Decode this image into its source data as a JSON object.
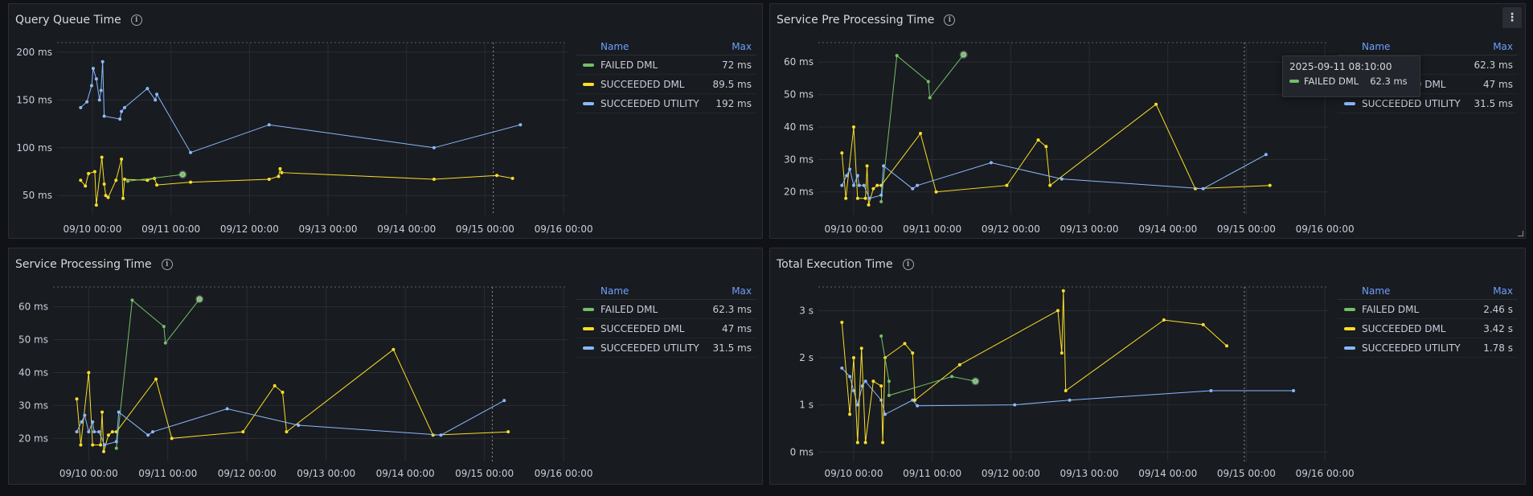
{
  "colors": {
    "FAILED DML": "#73bf69",
    "SUCCEEDED DML": "#fade2a",
    "SUCCEEDED UTILITY": "#8ab8ff"
  },
  "legend_headers": {
    "name": "Name",
    "max": "Max"
  },
  "x_tick_labels": [
    "09/10 00:00",
    "09/11 00:00",
    "09/12 00:00",
    "09/13 00:00",
    "09/14 00:00",
    "09/15 00:00",
    "09/16 00:00"
  ],
  "panels": [
    {
      "title": "Query Queue Time",
      "legend": [
        {
          "name": "FAILED DML",
          "max": "72 ms"
        },
        {
          "name": "SUCCEEDED DML",
          "max": "89.5 ms"
        },
        {
          "name": "SUCCEEDED UTILITY",
          "max": "192 ms"
        }
      ]
    },
    {
      "title": "Service Pre Processing Time",
      "legend": [
        {
          "name": "FAILED DML",
          "max": "62.3 ms"
        },
        {
          "name": "SUCCEEDED DML",
          "max": "47 ms"
        },
        {
          "name": "SUCCEEDED UTILITY",
          "max": "31.5 ms"
        }
      ],
      "tooltip": {
        "time": "2025-09-11 08:10:00",
        "series": "FAILED DML",
        "value": "62.3 ms"
      }
    },
    {
      "title": "Service Processing Time",
      "legend": [
        {
          "name": "FAILED DML",
          "max": "62.3 ms"
        },
        {
          "name": "SUCCEEDED DML",
          "max": "47 ms"
        },
        {
          "name": "SUCCEEDED UTILITY",
          "max": "31.5 ms"
        }
      ]
    },
    {
      "title": "Total Execution Time",
      "legend": [
        {
          "name": "FAILED DML",
          "max": "2.46 s"
        },
        {
          "name": "SUCCEEDED DML",
          "max": "3.42 s"
        },
        {
          "name": "SUCCEEDED UTILITY",
          "max": "1.78 s"
        }
      ]
    }
  ],
  "chart_data": [
    {
      "type": "line",
      "title": "Query Queue Time",
      "x_unit": "days since 2025-09-09 00:00",
      "y_ticks": [
        "50 ms",
        "100 ms",
        "150 ms",
        "200 ms"
      ],
      "ylim": [
        30,
        210
      ],
      "xlim": [
        8.8,
        15.3
      ],
      "series": [
        {
          "name": "SUCCEEDED UTILITY",
          "points": [
            [
              9.1,
              142
            ],
            [
              9.18,
              148
            ],
            [
              9.24,
              165
            ],
            [
              9.26,
              183
            ],
            [
              9.3,
              172
            ],
            [
              9.34,
              150
            ],
            [
              9.36,
              160
            ],
            [
              9.38,
              190
            ],
            [
              9.4,
              133
            ],
            [
              9.6,
              130
            ],
            [
              9.62,
              138
            ],
            [
              9.66,
              142
            ],
            [
              9.95,
              162
            ],
            [
              10.05,
              150
            ],
            [
              10.07,
              156
            ],
            [
              10.5,
              95
            ],
            [
              11.5,
              124
            ],
            [
              13.6,
              100
            ],
            [
              14.7,
              124
            ]
          ]
        },
        {
          "name": "SUCCEEDED DML",
          "points": [
            [
              9.1,
              66
            ],
            [
              9.16,
              60
            ],
            [
              9.2,
              73
            ],
            [
              9.28,
              75
            ],
            [
              9.3,
              40
            ],
            [
              9.37,
              90
            ],
            [
              9.4,
              62
            ],
            [
              9.42,
              50
            ],
            [
              9.45,
              48
            ],
            [
              9.55,
              66
            ],
            [
              9.62,
              88
            ],
            [
              9.64,
              47
            ],
            [
              9.66,
              67
            ],
            [
              9.95,
              66
            ],
            [
              10.04,
              68
            ],
            [
              10.07,
              61
            ],
            [
              10.5,
              64
            ],
            [
              11.5,
              67
            ],
            [
              11.62,
              70
            ],
            [
              11.64,
              78
            ],
            [
              11.66,
              74
            ],
            [
              13.6,
              67
            ],
            [
              14.4,
              71
            ],
            [
              14.6,
              68
            ]
          ]
        },
        {
          "name": "FAILED DML",
          "points": [
            [
              9.7,
              65
            ],
            [
              10.4,
              72
            ]
          ]
        }
      ]
    },
    {
      "type": "line",
      "title": "Service Pre Processing Time",
      "x_unit": "days since 2025-09-09 00:00",
      "y_ticks": [
        "20 ms",
        "30 ms",
        "40 ms",
        "50 ms",
        "60 ms"
      ],
      "ylim": [
        13,
        66
      ],
      "xlim": [
        8.8,
        15.3
      ],
      "series": [
        {
          "name": "FAILED DML",
          "points": [
            [
              9.6,
              17
            ],
            [
              9.8,
              62
            ],
            [
              10.2,
              54
            ],
            [
              10.22,
              49
            ],
            [
              10.65,
              62.3
            ]
          ]
        },
        {
          "name": "SUCCEEDED DML",
          "points": [
            [
              9.1,
              32
            ],
            [
              9.15,
              18
            ],
            [
              9.25,
              40
            ],
            [
              9.3,
              18
            ],
            [
              9.4,
              18
            ],
            [
              9.42,
              28
            ],
            [
              9.44,
              16
            ],
            [
              9.5,
              21
            ],
            [
              9.55,
              22
            ],
            [
              9.6,
              22
            ],
            [
              10.1,
              38
            ],
            [
              10.3,
              20
            ],
            [
              11.2,
              22
            ],
            [
              11.6,
              36
            ],
            [
              11.7,
              34
            ],
            [
              11.75,
              22
            ],
            [
              13.1,
              47
            ],
            [
              13.6,
              21
            ],
            [
              14.55,
              22
            ]
          ]
        },
        {
          "name": "SUCCEEDED UTILITY",
          "points": [
            [
              9.1,
              22
            ],
            [
              9.16,
              25
            ],
            [
              9.2,
              27
            ],
            [
              9.25,
              22
            ],
            [
              9.3,
              25
            ],
            [
              9.32,
              22
            ],
            [
              9.38,
              22
            ],
            [
              9.45,
              18
            ],
            [
              9.6,
              19
            ],
            [
              9.63,
              28
            ],
            [
              10.0,
              21
            ],
            [
              10.06,
              22
            ],
            [
              11.0,
              29
            ],
            [
              11.9,
              24
            ],
            [
              13.7,
              21
            ],
            [
              14.5,
              31.5
            ]
          ]
        }
      ]
    },
    {
      "type": "line",
      "title": "Service Processing Time",
      "x_unit": "days since 2025-09-09 00:00",
      "y_ticks": [
        "20 ms",
        "30 ms",
        "40 ms",
        "50 ms",
        "60 ms"
      ],
      "ylim": [
        13,
        66
      ],
      "xlim": [
        8.8,
        15.3
      ],
      "series": [
        {
          "name": "FAILED DML",
          "points": [
            [
              9.6,
              17
            ],
            [
              9.8,
              62
            ],
            [
              10.2,
              54
            ],
            [
              10.22,
              49
            ],
            [
              10.65,
              62.3
            ]
          ]
        },
        {
          "name": "SUCCEEDED DML",
          "points": [
            [
              9.1,
              32
            ],
            [
              9.15,
              18
            ],
            [
              9.25,
              40
            ],
            [
              9.3,
              18
            ],
            [
              9.4,
              18
            ],
            [
              9.42,
              28
            ],
            [
              9.44,
              16
            ],
            [
              9.5,
              21
            ],
            [
              9.55,
              22
            ],
            [
              9.6,
              22
            ],
            [
              10.1,
              38
            ],
            [
              10.3,
              20
            ],
            [
              11.2,
              22
            ],
            [
              11.6,
              36
            ],
            [
              11.7,
              34
            ],
            [
              11.75,
              22
            ],
            [
              13.1,
              47
            ],
            [
              13.6,
              21
            ],
            [
              14.55,
              22
            ]
          ]
        },
        {
          "name": "SUCCEEDED UTILITY",
          "points": [
            [
              9.1,
              22
            ],
            [
              9.16,
              25
            ],
            [
              9.2,
              27
            ],
            [
              9.25,
              22
            ],
            [
              9.3,
              25
            ],
            [
              9.32,
              22
            ],
            [
              9.38,
              22
            ],
            [
              9.45,
              18
            ],
            [
              9.6,
              19
            ],
            [
              9.63,
              28
            ],
            [
              10.0,
              21
            ],
            [
              10.06,
              22
            ],
            [
              11.0,
              29
            ],
            [
              11.9,
              24
            ],
            [
              13.7,
              21
            ],
            [
              14.5,
              31.5
            ]
          ]
        }
      ]
    },
    {
      "type": "line",
      "title": "Total Execution Time",
      "x_unit": "days since 2025-09-09 00:00",
      "y_ticks": [
        "0 ms",
        "1 s",
        "2 s",
        "3 s"
      ],
      "ylim": [
        -0.2,
        3.5
      ],
      "xlim": [
        8.8,
        15.3
      ],
      "series": [
        {
          "name": "SUCCEEDED UTILITY",
          "points": [
            [
              9.1,
              1.78
            ],
            [
              9.2,
              1.6
            ],
            [
              9.25,
              1.3
            ],
            [
              9.3,
              1.0
            ],
            [
              9.36,
              1.4
            ],
            [
              9.4,
              1.5
            ],
            [
              9.6,
              1.1
            ],
            [
              9.65,
              0.8
            ],
            [
              10.0,
              1.1
            ],
            [
              10.06,
              0.98
            ],
            [
              11.3,
              1.0
            ],
            [
              12.0,
              1.1
            ],
            [
              13.8,
              1.3
            ],
            [
              14.85,
              1.3
            ]
          ]
        },
        {
          "name": "SUCCEEDED DML",
          "points": [
            [
              9.1,
              2.75
            ],
            [
              9.2,
              0.8
            ],
            [
              9.25,
              2.0
            ],
            [
              9.3,
              0.2
            ],
            [
              9.35,
              2.2
            ],
            [
              9.4,
              0.2
            ],
            [
              9.5,
              1.5
            ],
            [
              9.6,
              1.4
            ],
            [
              9.62,
              0.2
            ],
            [
              9.65,
              2.0
            ],
            [
              9.9,
              2.3
            ],
            [
              10.0,
              2.1
            ],
            [
              10.03,
              1.1
            ],
            [
              10.6,
              1.85
            ],
            [
              11.85,
              3.0
            ],
            [
              11.9,
              2.1
            ],
            [
              11.92,
              3.42
            ],
            [
              11.95,
              1.3
            ],
            [
              13.2,
              2.8
            ],
            [
              13.7,
              2.7
            ],
            [
              14.0,
              2.25
            ]
          ]
        },
        {
          "name": "FAILED DML",
          "points": [
            [
              9.6,
              2.46
            ],
            [
              9.7,
              1.5
            ],
            [
              9.7,
              1.2
            ],
            [
              10.5,
              1.6
            ],
            [
              10.8,
              1.5
            ]
          ]
        }
      ]
    }
  ]
}
